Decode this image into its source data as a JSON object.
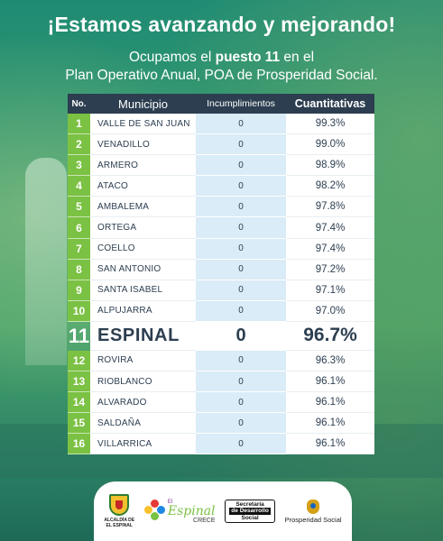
{
  "header": {
    "title": "¡Estamos avanzando y mejorando!",
    "subtitle_pre": "Ocupamos el ",
    "subtitle_bold": "puesto 11",
    "subtitle_post": " en el",
    "subtitle_line2": "Plan Operativo Anual, POA de Prosperidad Social."
  },
  "table": {
    "columns": [
      "No.",
      "Municipio",
      "Incumplimientos",
      "Cuantitativas"
    ],
    "rows": [
      {
        "no": "1",
        "municipio": "VALLE DE SAN JUAN",
        "incumplimientos": "0",
        "cuantitativas": "99.3%"
      },
      {
        "no": "2",
        "municipio": "VENADILLO",
        "incumplimientos": "0",
        "cuantitativas": "99.0%"
      },
      {
        "no": "3",
        "municipio": "ARMERO",
        "incumplimientos": "0",
        "cuantitativas": "98.9%"
      },
      {
        "no": "4",
        "municipio": "ATACO",
        "incumplimientos": "0",
        "cuantitativas": "98.2%"
      },
      {
        "no": "5",
        "municipio": "AMBALEMA",
        "incumplimientos": "0",
        "cuantitativas": "97.8%"
      },
      {
        "no": "6",
        "municipio": "ORTEGA",
        "incumplimientos": "0",
        "cuantitativas": "97.4%"
      },
      {
        "no": "7",
        "municipio": "COELLO",
        "incumplimientos": "0",
        "cuantitativas": "97.4%"
      },
      {
        "no": "8",
        "municipio": "SAN ANTONIO",
        "incumplimientos": "0",
        "cuantitativas": "97.2%"
      },
      {
        "no": "9",
        "municipio": "SANTA ISABEL",
        "incumplimientos": "0",
        "cuantitativas": "97.1%"
      },
      {
        "no": "10",
        "municipio": "ALPUJARRA",
        "incumplimientos": "0",
        "cuantitativas": "97.0%"
      }
    ],
    "highlight": {
      "no": "11",
      "municipio": "ESPINAL",
      "incumplimientos": "0",
      "cuantitativas": "96.7%"
    },
    "rows_after": [
      {
        "no": "12",
        "municipio": "ROVIRA",
        "incumplimientos": "0",
        "cuantitativas": "96.3%"
      },
      {
        "no": "13",
        "municipio": "RIOBLANCO",
        "incumplimientos": "0",
        "cuantitativas": "96.1%"
      },
      {
        "no": "14",
        "municipio": "ALVARADO",
        "incumplimientos": "0",
        "cuantitativas": "96.1%"
      },
      {
        "no": "15",
        "municipio": "SALDAÑA",
        "incumplimientos": "0",
        "cuantitativas": "96.1%"
      },
      {
        "no": "16",
        "municipio": "VILLARRICA",
        "incumplimientos": "0",
        "cuantitativas": "96.1%"
      }
    ]
  },
  "footer": {
    "alcaldia_line1": "ALCALDÍA DE",
    "alcaldia_line2": "EL ESPINAL",
    "crece_el": "El",
    "crece_main": "Espinal",
    "crece_sub": "CRECE",
    "sec_line1": "Secretaría",
    "sec_line2": "de Desarrollo",
    "sec_line3": "Social",
    "prosperidad": "Prosperidad Social"
  },
  "colors": {
    "header_bg": "#2c3e50",
    "number_green": "#7bc143",
    "inc_blue": "#d9ecf7",
    "text_dark": "#2c3e50"
  }
}
